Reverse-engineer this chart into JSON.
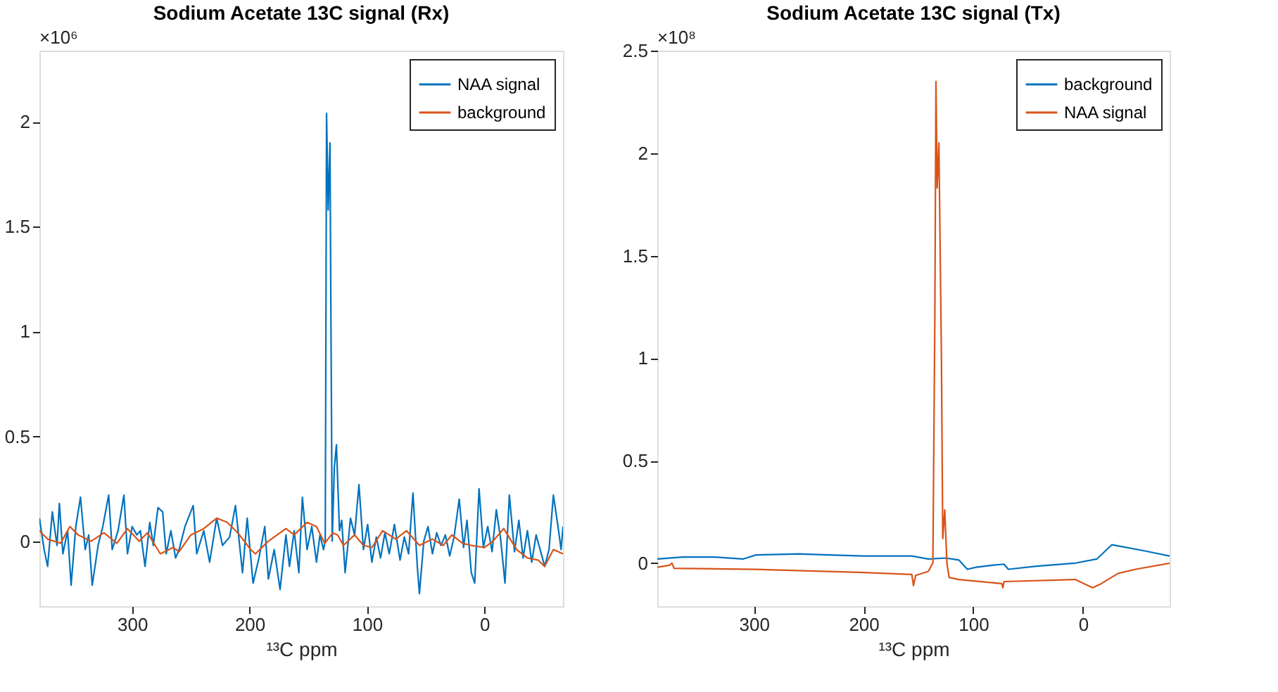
{
  "chart_data": [
    {
      "type": "line",
      "title": "Sodium Acetate 13C signal (Rx)",
      "xlabel": "¹³C ppm",
      "annotations": [
        "×10⁶"
      ],
      "xlim": [
        379,
        -67
      ],
      "xticks": [
        300,
        200,
        100,
        0
      ],
      "ylim": [
        -0.31,
        2.34
      ],
      "yticks": [
        0,
        0.5,
        1,
        1.5,
        2
      ],
      "grid": false,
      "legend": "top right",
      "line_style": "solid",
      "marker": "none",
      "series": [
        {
          "name": "NAA signal",
          "color": "#0072bd",
          "x": [
            379,
            375,
            372,
            368,
            364,
            362,
            359,
            355,
            352,
            348,
            344,
            340,
            337,
            334,
            329,
            325,
            320,
            317,
            312,
            307,
            304,
            300,
            296,
            293,
            289,
            285,
            282,
            278,
            274,
            271,
            267,
            263,
            260,
            255,
            248,
            245,
            239,
            234,
            228,
            223,
            217,
            212,
            206,
            202,
            197,
            192,
            187,
            184,
            179,
            174,
            169,
            166,
            162,
            158,
            155,
            151,
            147,
            143,
            140,
            137,
            135.5,
            134.4,
            133,
            131.5,
            129.6,
            127.8,
            126,
            123.4,
            121.5,
            118.6,
            114,
            110.5,
            106.8,
            103,
            99.4,
            95.8,
            92,
            88.4,
            84.7,
            81,
            76.6,
            71.8,
            68.2,
            64.5,
            60.8,
            57.1,
            55.3,
            51.6,
            48,
            44.2,
            40.6,
            36.9,
            33.2,
            29.5,
            25.8,
            21.4,
            17.7,
            14.8,
            11.1,
            8.2,
            4.5,
            0.8,
            -2.9,
            -6.6,
            -10.2,
            -13.9,
            -17.6,
            -21.3,
            -25.7,
            -29.4,
            -33,
            -36.7,
            -40.4,
            -44.1,
            -51.4,
            -55.1,
            -58.8,
            -62.5,
            -65.4,
            -67
          ],
          "values": [
            0.11,
            -0.04,
            -0.12,
            0.14,
            -0.02,
            0.18,
            -0.06,
            0.05,
            -0.21,
            0.07,
            0.21,
            -0.04,
            0.03,
            -0.21,
            -0.02,
            0.07,
            0.22,
            -0.04,
            0.05,
            0.22,
            -0.06,
            0.07,
            0.03,
            0.05,
            -0.12,
            0.09,
            -0.02,
            0.16,
            0.14,
            -0.06,
            0.05,
            -0.08,
            -0.04,
            0.07,
            0.17,
            -0.06,
            0.05,
            -0.1,
            0.11,
            -0.02,
            0.02,
            0.17,
            -0.15,
            0.11,
            -0.2,
            -0.08,
            0.07,
            -0.18,
            -0.04,
            -0.23,
            0.03,
            -0.12,
            0.05,
            -0.15,
            0.21,
            -0.04,
            0.07,
            -0.1,
            0.03,
            -0.04,
            0.0,
            2.04,
            1.58,
            1.9,
            0.0,
            0.35,
            0.46,
            0.05,
            0.1,
            -0.15,
            0.11,
            0.03,
            0.27,
            -0.04,
            0.08,
            -0.1,
            0.02,
            -0.08,
            0.04,
            -0.06,
            0.08,
            -0.09,
            0.02,
            -0.06,
            0.23,
            -0.12,
            -0.25,
            0.0,
            0.07,
            -0.06,
            0.04,
            -0.02,
            0.03,
            -0.07,
            0.02,
            0.2,
            -0.03,
            0.1,
            -0.15,
            -0.2,
            0.25,
            -0.03,
            0.07,
            -0.05,
            0.15,
            0.01,
            -0.2,
            0.22,
            -0.05,
            0.1,
            -0.08,
            0.05,
            -0.1,
            0.03,
            -0.12,
            -0.04,
            0.22,
            0.08,
            -0.04,
            0.07
          ]
        },
        {
          "name": "background",
          "color": "#d95319",
          "x": [
            379,
            372,
            361,
            353,
            346,
            335,
            324,
            313,
            304,
            294,
            287,
            276,
            265,
            260,
            250,
            239,
            228,
            219,
            210,
            199,
            195,
            184,
            169,
            162,
            151,
            143,
            136,
            129,
            125,
            120,
            110.5,
            103,
            95.8,
            86.6,
            75.5,
            66.3,
            55.3,
            44.2,
            35,
            27.7,
            18.5,
            11.1,
            0,
            -7.3,
            -16.5,
            -22,
            -27.6,
            -36.7,
            -45.9,
            -51.4,
            -58.8,
            -67
          ],
          "values": [
            0.05,
            0.01,
            -0.01,
            0.07,
            0.03,
            0.0,
            0.04,
            -0.01,
            0.06,
            0.0,
            0.04,
            -0.06,
            -0.03,
            -0.05,
            0.03,
            0.06,
            0.11,
            0.09,
            0.04,
            -0.04,
            -0.06,
            0.0,
            0.06,
            0.03,
            0.09,
            0.07,
            -0.01,
            0.04,
            0.03,
            -0.02,
            0.03,
            -0.02,
            -0.03,
            0.05,
            0.01,
            0.05,
            -0.02,
            0.01,
            -0.02,
            0.03,
            -0.01,
            -0.02,
            -0.03,
            0.0,
            0.06,
            0.01,
            -0.04,
            -0.08,
            -0.09,
            -0.12,
            -0.04,
            -0.06
          ]
        }
      ]
    },
    {
      "type": "line",
      "title": "Sodium Acetate 13C signal (Tx)",
      "xlabel": "¹³C ppm",
      "annotations": [
        "×10⁸"
      ],
      "xlim": [
        388,
        -79
      ],
      "xticks": [
        300,
        200,
        100,
        0
      ],
      "ylim": [
        -0.21,
        2.5
      ],
      "yticks": [
        0,
        0.5,
        1,
        1.5,
        2,
        2.5
      ],
      "grid": false,
      "legend": "top right",
      "line_style": "solid",
      "marker": "none",
      "series": [
        {
          "name": "background",
          "color": "#0072bd",
          "x": [
            388,
            365,
            337,
            310,
            298,
            259,
            231,
            200,
            156,
            141,
            125,
            113,
            105.4,
            97.5,
            82,
            72,
            68,
            42.4,
            7,
            -12.6,
            -26.4,
            -56,
            -79
          ],
          "values": [
            0.02,
            0.03,
            0.03,
            0.02,
            0.04,
            0.045,
            0.04,
            0.035,
            0.035,
            0.02,
            0.025,
            0.015,
            -0.03,
            -0.02,
            -0.01,
            -0.005,
            -0.03,
            -0.015,
            0.0,
            0.02,
            0.09,
            0.06,
            0.035
          ]
        },
        {
          "name": "NAA signal",
          "color": "#d95319",
          "x": [
            388,
            376.7,
            374.7,
            372.7,
            298,
            204,
            156,
            154.5,
            152.5,
            141,
            136.8,
            135,
            134,
            132.9,
            131.3,
            129,
            127.8,
            126,
            124,
            122,
            113,
            74,
            73,
            72,
            7,
            -8.8,
            -16.7,
            -32,
            -48,
            -79
          ],
          "values": [
            -0.02,
            -0.01,
            0.0,
            -0.025,
            -0.03,
            -0.045,
            -0.055,
            -0.11,
            -0.06,
            -0.04,
            0.0,
            1.2,
            2.35,
            1.83,
            2.05,
            1.0,
            0.12,
            0.26,
            0.0,
            -0.07,
            -0.08,
            -0.1,
            -0.12,
            -0.09,
            -0.08,
            -0.12,
            -0.1,
            -0.05,
            -0.03,
            0.0
          ]
        }
      ]
    }
  ]
}
